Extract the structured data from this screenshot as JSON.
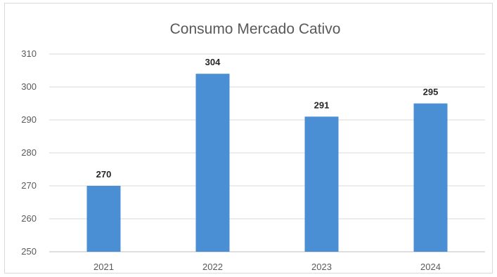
{
  "chart_data": {
    "type": "bar",
    "title": "Consumo Mercado Cativo",
    "categories": [
      "2021",
      "2022",
      "2023",
      "2024"
    ],
    "values": [
      270,
      304,
      291,
      295
    ],
    "data_labels": [
      "270",
      "304",
      "291",
      "295"
    ],
    "ylim": [
      250,
      310
    ],
    "yticks": [
      250,
      260,
      270,
      280,
      290,
      300,
      310
    ],
    "grid": true,
    "legend": "none",
    "bar_color": "#4a8fd4"
  }
}
